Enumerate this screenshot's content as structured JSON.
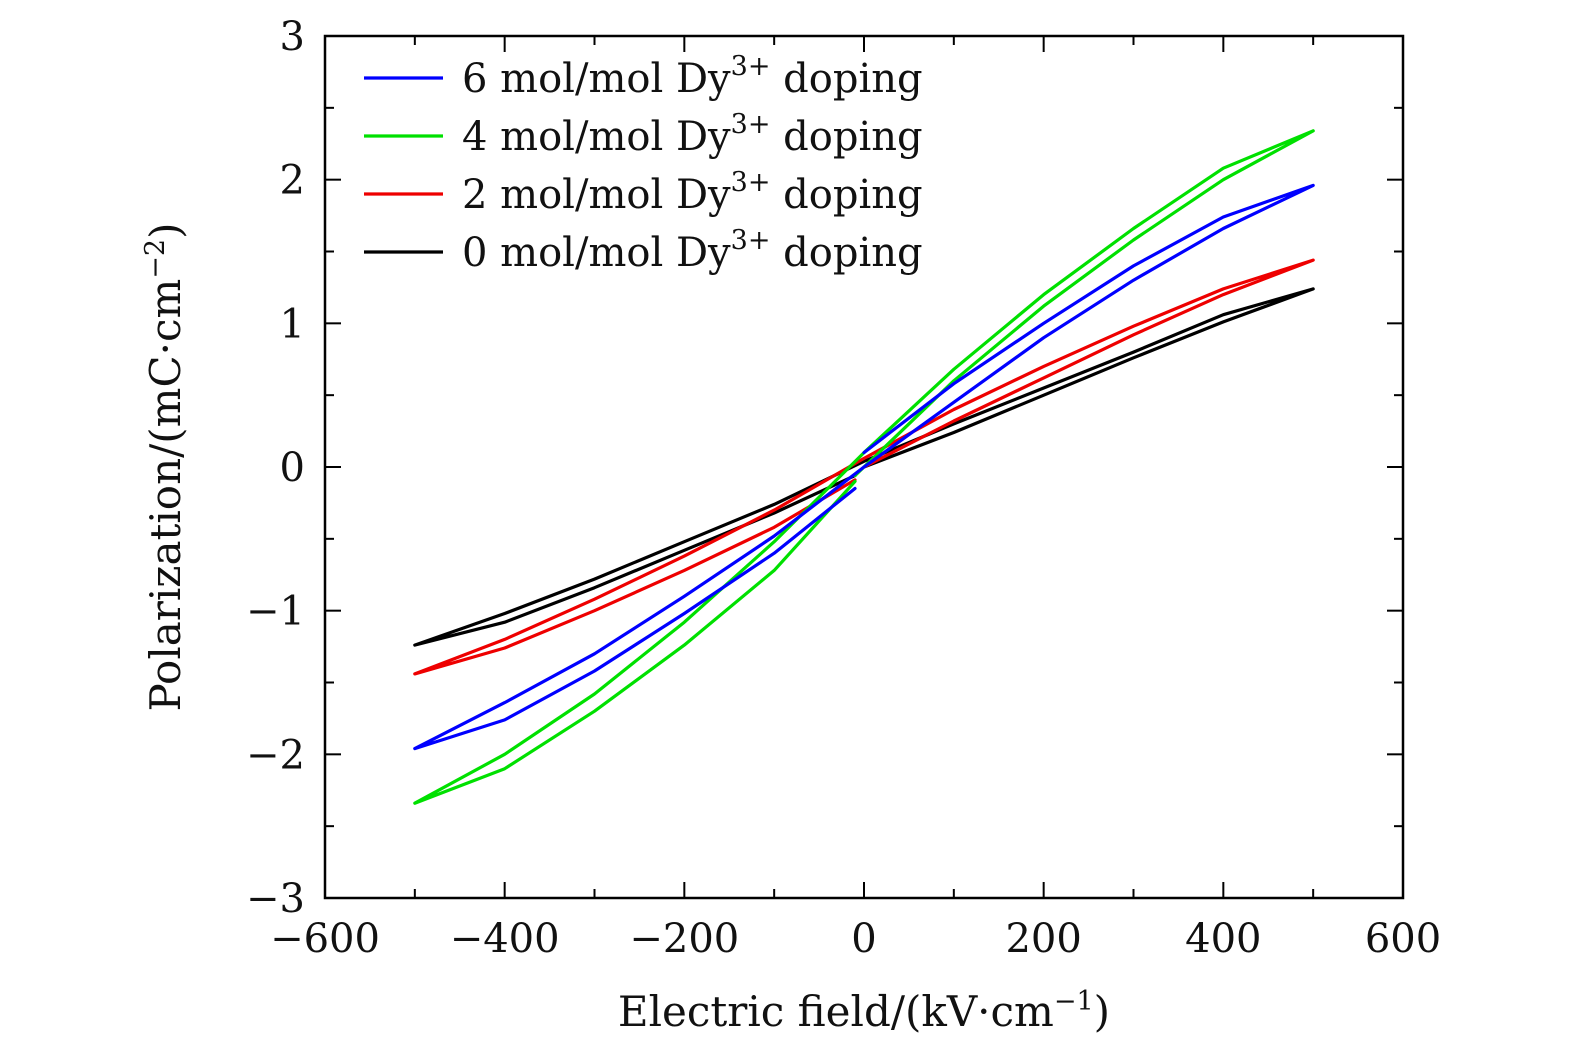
{
  "chart_data": {
    "type": "line",
    "xlabel": "Electric field/(kV·cm",
    "xlabel_sup": "−1",
    "xlabel_close": ")",
    "ylabel": "Polarization/(mC·cm",
    "ylabel_sup": "−2",
    "ylabel_close": ")",
    "xlim": [
      -600,
      600
    ],
    "ylim": [
      -3,
      3
    ],
    "x_ticks": [
      -600,
      -400,
      -200,
      0,
      200,
      400,
      600
    ],
    "x_tick_labels": [
      "−600",
      "−400",
      "−200",
      "0",
      "200",
      "400",
      "600"
    ],
    "y_ticks": [
      -3,
      -2,
      -1,
      0,
      1,
      2,
      3
    ],
    "y_tick_labels": [
      "−3",
      "−2",
      "−1",
      "0",
      "1",
      "2",
      "3"
    ],
    "grid": false,
    "legend_position": "top-left",
    "series": [
      {
        "name": "6 mol/mol Dy",
        "name_sup": "3+",
        "name_suffix": "doping",
        "color": "#0000ff",
        "x": [
          0,
          100,
          200,
          300,
          400,
          500,
          400,
          300,
          200,
          100,
          0,
          -100,
          -200,
          -300,
          -400,
          -500,
          -400,
          -300,
          -200,
          -100,
          -10
        ],
        "y": [
          0.1,
          0.58,
          1.0,
          1.4,
          1.74,
          1.96,
          1.66,
          1.3,
          0.9,
          0.45,
          0.0,
          -0.48,
          -0.9,
          -1.3,
          -1.64,
          -1.96,
          -1.76,
          -1.42,
          -1.02,
          -0.6,
          -0.15
        ]
      },
      {
        "name": "4 mol/mol Dy",
        "name_sup": "3+",
        "name_suffix": "doping",
        "color": "#00e000",
        "x": [
          -10,
          100,
          200,
          300,
          400,
          500,
          400,
          300,
          200,
          100,
          0,
          -100,
          -200,
          -300,
          -400,
          -500,
          -400,
          -300,
          -200,
          -100,
          -10
        ],
        "y": [
          -0.06,
          0.6,
          1.12,
          1.58,
          2.0,
          2.34,
          2.08,
          1.66,
          1.2,
          0.68,
          0.1,
          -0.52,
          -1.08,
          -1.58,
          -2.0,
          -2.34,
          -2.1,
          -1.7,
          -1.24,
          -0.72,
          -0.1
        ]
      },
      {
        "name": "2 mol/mol Dy",
        "name_sup": "3+",
        "name_suffix": "doping",
        "color": "#ee0000",
        "x": [
          0,
          100,
          200,
          300,
          400,
          500,
          400,
          300,
          200,
          100,
          0,
          -100,
          -200,
          -300,
          -400,
          -500,
          -400,
          -300,
          -200,
          -100,
          -10
        ],
        "y": [
          0.0,
          0.32,
          0.62,
          0.92,
          1.2,
          1.44,
          1.24,
          0.98,
          0.7,
          0.4,
          0.06,
          -0.3,
          -0.62,
          -0.92,
          -1.2,
          -1.44,
          -1.26,
          -1.0,
          -0.72,
          -0.42,
          -0.09
        ]
      },
      {
        "name": "0 mol/mol Dy",
        "name_sup": "3+",
        "name_suffix": "doping",
        "color": "#000000",
        "x": [
          0,
          100,
          200,
          300,
          400,
          500,
          400,
          300,
          200,
          100,
          0,
          -100,
          -200,
          -300,
          -400,
          -500,
          -400,
          -300,
          -200,
          -100,
          -10
        ],
        "y": [
          0.0,
          0.24,
          0.5,
          0.76,
          1.01,
          1.24,
          1.06,
          0.8,
          0.55,
          0.3,
          0.04,
          -0.26,
          -0.52,
          -0.78,
          -1.02,
          -1.24,
          -1.08,
          -0.84,
          -0.58,
          -0.32,
          -0.06
        ]
      }
    ]
  }
}
